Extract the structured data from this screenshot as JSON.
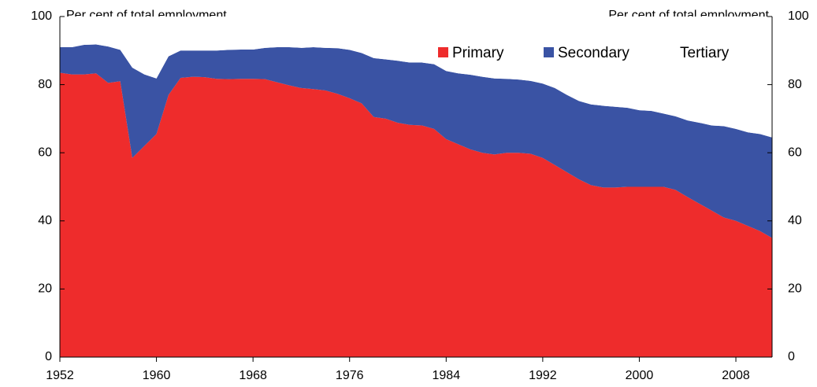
{
  "chart_data": {
    "type": "stacked_area",
    "ylabel": "Per cent of total employment",
    "y2label": "Per cent of total employment",
    "x": [
      1952,
      1953,
      1954,
      1955,
      1956,
      1957,
      1958,
      1959,
      1960,
      1961,
      1962,
      1963,
      1964,
      1965,
      1966,
      1967,
      1968,
      1969,
      1970,
      1971,
      1972,
      1973,
      1974,
      1975,
      1976,
      1977,
      1978,
      1979,
      1980,
      1981,
      1982,
      1983,
      1984,
      1985,
      1986,
      1987,
      1988,
      1989,
      1990,
      1991,
      1992,
      1993,
      1994,
      1995,
      1996,
      1997,
      1998,
      1999,
      2000,
      2001,
      2002,
      2003,
      2004,
      2005,
      2006,
      2007,
      2008,
      2009,
      2010,
      2011
    ],
    "series": [
      {
        "name": "Primary",
        "color": "#ee2c2c",
        "values": [
          83.5,
          83,
          83,
          83.3,
          80.5,
          81,
          58.5,
          62,
          65.5,
          77,
          82,
          82.3,
          82.2,
          81.7,
          81.6,
          81.7,
          81.7,
          81.6,
          80.7,
          79.8,
          79,
          78.7,
          78.3,
          77.3,
          76,
          74.5,
          70.5,
          70,
          68.8,
          68.2,
          68,
          67,
          64,
          62.5,
          61,
          60,
          59.5,
          60,
          60,
          59.7,
          58.5,
          56.4,
          54.3,
          52.2,
          50.5,
          49.8,
          49.8,
          50,
          50,
          50,
          50,
          49.1,
          47,
          45,
          43,
          41,
          40,
          38.5,
          37,
          35
        ]
      },
      {
        "name": "Secondary",
        "color": "#3a53a4",
        "values": [
          7.5,
          8,
          8.7,
          8.5,
          10.7,
          9.2,
          26.5,
          21,
          16.3,
          11.3,
          8,
          7.7,
          7.8,
          8.3,
          8.6,
          8.6,
          8.6,
          9.2,
          10.3,
          11.2,
          11.8,
          12.3,
          12.5,
          13.4,
          14.2,
          14.8,
          17.3,
          17.4,
          18.2,
          18.3,
          18.5,
          19,
          20,
          20.8,
          21.9,
          22.3,
          22.3,
          21.7,
          21.5,
          21.4,
          21.8,
          22.6,
          22.7,
          23,
          23.7,
          24,
          23.7,
          23.2,
          22.5,
          22.3,
          21.5,
          21.6,
          22.5,
          23.8,
          25,
          26.8,
          27,
          27.5,
          28.5,
          29.5
        ]
      },
      {
        "name": "Tertiary",
        "color": "#ffffff",
        "values": [
          9,
          9,
          8.3,
          8.2,
          8.8,
          9.8,
          15,
          17,
          18.2,
          11.7,
          10,
          10,
          10,
          10,
          9.8,
          9.7,
          9.7,
          9.2,
          9,
          9,
          9.2,
          9,
          9.2,
          9.3,
          9.8,
          10.7,
          12.2,
          12.6,
          13,
          13.5,
          13.5,
          14,
          16,
          16.7,
          17.1,
          17.7,
          18.2,
          18.3,
          18.5,
          18.9,
          19.7,
          21,
          23,
          24.8,
          25.8,
          26.2,
          26.5,
          26.8,
          27.5,
          27.7,
          28.5,
          29.3,
          30.5,
          31.2,
          32,
          32.2,
          33,
          34,
          34.5,
          35.5
        ]
      }
    ],
    "xlim": [
      1952,
      2011
    ],
    "xticks": [
      1952,
      1960,
      1968,
      1976,
      1984,
      1992,
      2000,
      2008
    ],
    "ylim": [
      0,
      100
    ],
    "yticks": [
      0,
      20,
      40,
      60,
      80,
      100
    ],
    "y2lim": [
      0,
      100
    ],
    "y2ticks": [
      0,
      20,
      40,
      60,
      80,
      100
    ],
    "legend": "top-right"
  }
}
